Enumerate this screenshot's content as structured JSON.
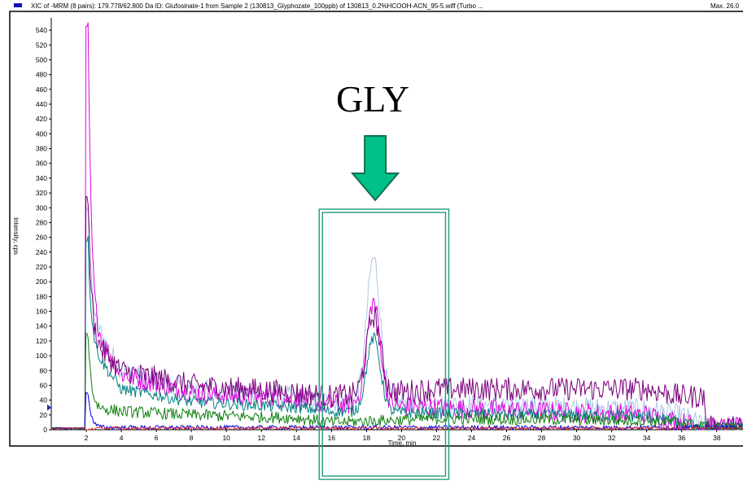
{
  "header": {
    "title": "XIC of -MRM (8 pairs): 179.778/62.800 Da ID: Glufosinate-1 from Sample 2 (130813_Glyphozate_100ppb) of 130813_0.2%HCOOH-ACN_95-5.wiff (Turbo ...",
    "max_label": "Max. 26.0"
  },
  "annotation": {
    "label": "GLY",
    "arrow_color": "#00c08a",
    "box_color": "#1f9b79"
  },
  "chart_data": {
    "type": "line",
    "xlabel": "Time, min",
    "ylabel": "Intensity, cps",
    "xlim": [
      0,
      39.5
    ],
    "ylim": [
      0,
      550
    ],
    "x_ticks": [
      2,
      4,
      6,
      8,
      10,
      12,
      14,
      16,
      18,
      20,
      22,
      24,
      26,
      28,
      30,
      32,
      34,
      36,
      38
    ],
    "y_ticks": [
      0,
      20,
      40,
      60,
      80,
      100,
      120,
      140,
      160,
      180,
      200,
      220,
      240,
      260,
      280,
      300,
      320,
      340,
      360,
      380,
      400,
      420,
      440,
      460,
      480,
      500,
      520,
      540
    ],
    "highlight_region_x": [
      15.3,
      22.7
    ],
    "arrow_x": 18.5,
    "peak": {
      "x": 18.4,
      "label": "GLY"
    },
    "series": [
      {
        "color": "#aac8e6",
        "spike": 300,
        "baseline": [
          [
            2.3,
            150
          ],
          [
            4,
            80
          ],
          [
            8,
            55
          ],
          [
            14,
            45
          ],
          [
            16,
            38
          ],
          [
            22,
            35
          ],
          [
            28,
            32
          ],
          [
            34,
            28
          ],
          [
            36,
            20
          ],
          [
            37.3,
            5
          ],
          [
            39.5,
            3
          ]
        ],
        "peak": 195,
        "noise": 14
      },
      {
        "color": "#e000e0",
        "spike": 545,
        "baseline": [
          [
            2.3,
            140
          ],
          [
            4,
            75
          ],
          [
            8,
            50
          ],
          [
            14,
            40
          ],
          [
            16,
            35
          ],
          [
            22,
            30
          ],
          [
            28,
            25
          ],
          [
            34,
            20
          ],
          [
            36,
            10
          ],
          [
            37.3,
            3
          ],
          [
            39.5,
            3
          ]
        ],
        "peak": 140,
        "noise": 14
      },
      {
        "color": "#7a007a",
        "spike": 315,
        "baseline": [
          [
            2.3,
            120
          ],
          [
            4,
            80
          ],
          [
            8,
            60
          ],
          [
            14,
            50
          ],
          [
            16,
            45
          ],
          [
            22,
            55
          ],
          [
            28,
            55
          ],
          [
            34,
            55
          ],
          [
            36,
            45
          ],
          [
            37.3,
            45
          ],
          [
            37.4,
            3
          ],
          [
            39.5,
            3
          ]
        ],
        "peak": 105,
        "noise": 16
      },
      {
        "color": "#008080",
        "spike": 255,
        "baseline": [
          [
            2.3,
            110
          ],
          [
            4,
            55
          ],
          [
            8,
            38
          ],
          [
            14,
            30
          ],
          [
            16,
            25
          ],
          [
            22,
            22
          ],
          [
            28,
            20
          ],
          [
            34,
            18
          ],
          [
            36,
            8
          ],
          [
            37.3,
            3
          ],
          [
            39.5,
            3
          ]
        ],
        "peak": 100,
        "noise": 8
      },
      {
        "color": "#108010",
        "spike": 130,
        "baseline": [
          [
            2.3,
            30
          ],
          [
            4,
            25
          ],
          [
            8,
            20
          ],
          [
            14,
            16
          ],
          [
            16,
            10
          ],
          [
            22,
            15
          ],
          [
            28,
            14
          ],
          [
            34,
            12
          ],
          [
            36,
            10
          ],
          [
            37.3,
            3
          ],
          [
            39.5,
            3
          ]
        ],
        "peak": 0,
        "noise": 8
      },
      {
        "color": "#0000e0",
        "spike": 50,
        "baseline": [
          [
            2.3,
            3
          ],
          [
            39.5,
            3
          ]
        ],
        "peak": 0,
        "noise": 3
      },
      {
        "color": "#e03030",
        "spike": 0,
        "baseline": [
          [
            2.3,
            2
          ],
          [
            39.5,
            2
          ]
        ],
        "peak": 0,
        "noise": 2
      }
    ]
  }
}
